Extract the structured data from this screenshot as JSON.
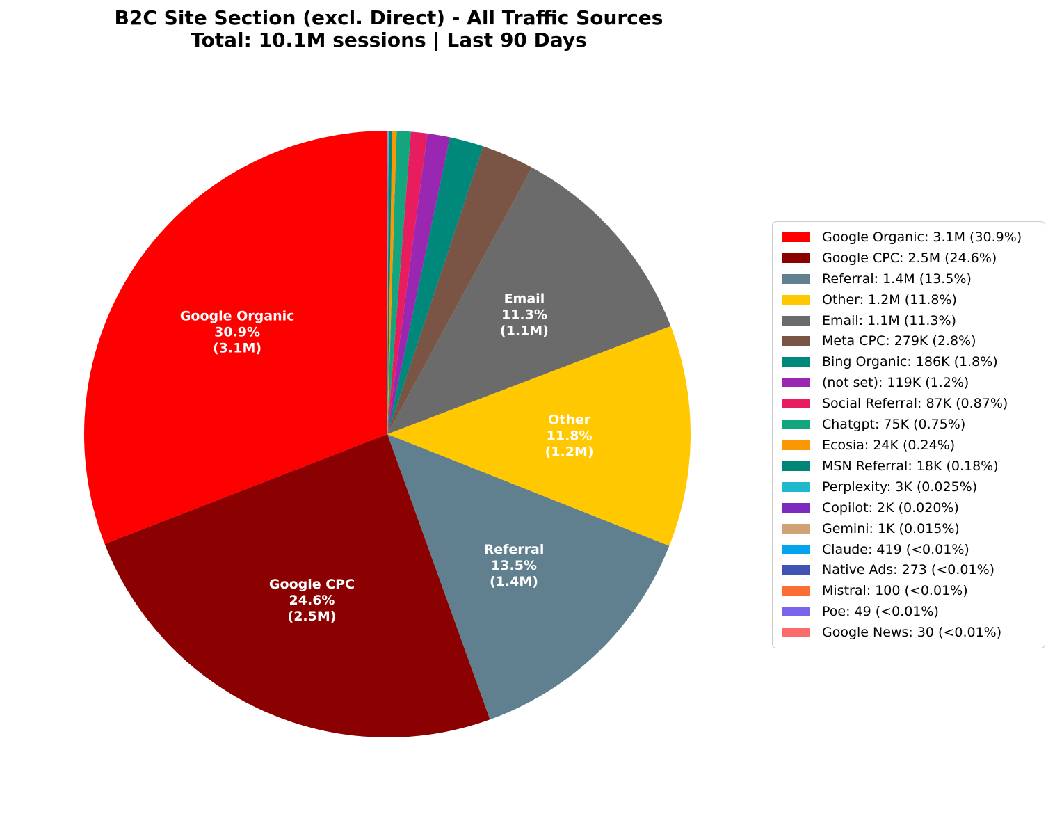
{
  "chart_data": {
    "type": "pie",
    "title": "B2C Site Section (excl. Direct) - All Traffic Sources",
    "subtitle": "Total: 10.1M sessions | Last 90 Days",
    "start_angle_deg": 90,
    "counterclockwise": true,
    "legend_position": "center right",
    "inside_label_threshold_pct": 5,
    "inside_label_format": "name / percent / (sessions)",
    "legend_format": "name: sessions (percent)",
    "slices": [
      {
        "name": "Google Organic",
        "sessions_label": "3.1M",
        "pct": 30.9,
        "pct_label": "30.9%",
        "color": "#FF0000"
      },
      {
        "name": "Google CPC",
        "sessions_label": "2.5M",
        "pct": 24.6,
        "pct_label": "24.6%",
        "color": "#8B0000"
      },
      {
        "name": "Referral",
        "sessions_label": "1.4M",
        "pct": 13.5,
        "pct_label": "13.5%",
        "color": "#61808F"
      },
      {
        "name": "Other",
        "sessions_label": "1.2M",
        "pct": 11.8,
        "pct_label": "11.8%",
        "color": "#FFC800"
      },
      {
        "name": "Email",
        "sessions_label": "1.1M",
        "pct": 11.3,
        "pct_label": "11.3%",
        "color": "#6B6B6B"
      },
      {
        "name": "Meta CPC",
        "sessions_label": "279K",
        "pct": 2.8,
        "pct_label": "2.8%",
        "color": "#7A5546"
      },
      {
        "name": "Bing Organic",
        "sessions_label": "186K",
        "pct": 1.8,
        "pct_label": "1.8%",
        "color": "#00897B"
      },
      {
        "name": "(not set)",
        "sessions_label": "119K",
        "pct": 1.2,
        "pct_label": "1.2%",
        "color": "#9A27B2"
      },
      {
        "name": "Social Referral",
        "sessions_label": "87K",
        "pct": 0.87,
        "pct_label": "0.87%",
        "color": "#E81D60"
      },
      {
        "name": "Chatgpt",
        "sessions_label": "75K",
        "pct": 0.75,
        "pct_label": "0.75%",
        "color": "#12A57E"
      },
      {
        "name": "Ecosia",
        "sessions_label": "24K",
        "pct": 0.24,
        "pct_label": "0.24%",
        "color": "#FB9703"
      },
      {
        "name": "MSN Referral",
        "sessions_label": "18K",
        "pct": 0.18,
        "pct_label": "0.18%",
        "color": "#008577"
      },
      {
        "name": "Perplexity",
        "sessions_label": "3K",
        "pct": 0.025,
        "pct_label": "0.025%",
        "color": "#20B8CD"
      },
      {
        "name": "Copilot",
        "sessions_label": "2K",
        "pct": 0.02,
        "pct_label": "0.020%",
        "color": "#7B2CBF"
      },
      {
        "name": "Gemini",
        "sessions_label": "1K",
        "pct": 0.015,
        "pct_label": "0.015%",
        "color": "#D0A376"
      },
      {
        "name": "Claude",
        "sessions_label": "419",
        "pct": 0.0041,
        "pct_label": "<0.01%",
        "color": "#04A3EE"
      },
      {
        "name": "Native Ads",
        "sessions_label": "273",
        "pct": 0.0027,
        "pct_label": "<0.01%",
        "color": "#4053B2"
      },
      {
        "name": "Mistral",
        "sessions_label": "100",
        "pct": 0.001,
        "pct_label": "<0.01%",
        "color": "#FC6D33"
      },
      {
        "name": "Poe",
        "sessions_label": "49",
        "pct": 0.0005,
        "pct_label": "<0.01%",
        "color": "#7C63EC"
      },
      {
        "name": "Google News",
        "sessions_label": "30",
        "pct": 0.0003,
        "pct_label": "<0.01%",
        "color": "#FC6B6B"
      }
    ]
  }
}
